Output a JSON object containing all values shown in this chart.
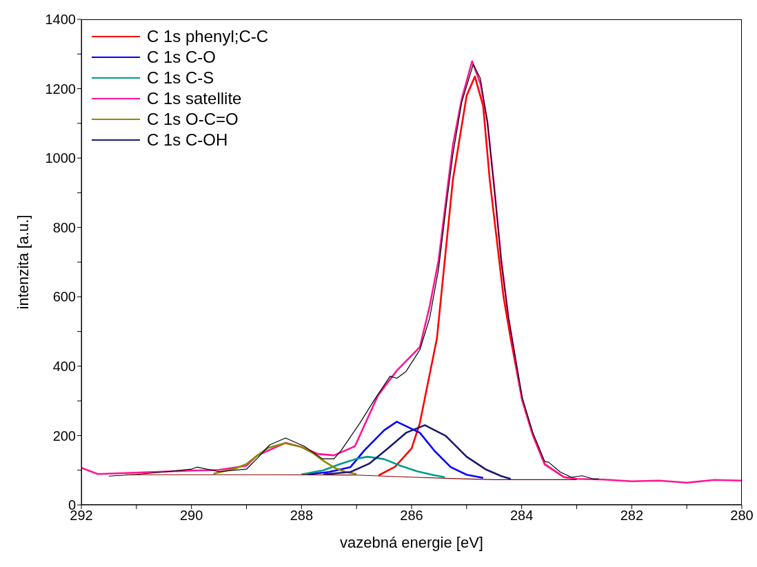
{
  "chart_data": {
    "type": "line",
    "xlabel": "vazebná energie [eV]",
    "ylabel": "intenzita [a.u.]",
    "xlim": [
      292,
      280
    ],
    "xticks": [
      292,
      {
        "value": 291,
        "label": null
      },
      290,
      {
        "value": 289,
        "label": null
      },
      288,
      {
        "value": 287,
        "label": null
      },
      286,
      {
        "value": 285,
        "label": null
      },
      284,
      {
        "value": 283,
        "label": null
      },
      282,
      {
        "value": 281,
        "label": null
      },
      280
    ],
    "ylim": [
      0,
      1400
    ],
    "yticks": [
      0,
      {
        "value": 100,
        "label": null
      },
      200,
      {
        "value": 300,
        "label": null
      },
      400,
      {
        "value": 500,
        "label": null
      },
      600,
      {
        "value": 700,
        "label": null
      },
      800,
      {
        "value": 900,
        "label": null
      },
      1000,
      {
        "value": 1100,
        "label": null
      },
      1200,
      {
        "value": 1300,
        "label": null
      },
      1400
    ],
    "grid": false,
    "legend": "top left",
    "marker": "none",
    "line_style": "solid",
    "series": [
      {
        "color": "#000000",
        "x": [
          291.5,
          291,
          290.5,
          290,
          289.9,
          289.5,
          289,
          288.8,
          288.58,
          288.29,
          287.95,
          287.62,
          287.41,
          287.28,
          286.94,
          286.68,
          286.39,
          286.27,
          286.1,
          285.85,
          285.67,
          285.51,
          285.38,
          285.25,
          285.09,
          284.88,
          284.75,
          284.62,
          284.49,
          284.37,
          284.24,
          283.99,
          283.8,
          283.58,
          283.51,
          283.3,
          283.1,
          282.9,
          282.7,
          282.6
        ],
        "values": [
          83,
          88,
          95,
          103,
          109,
          96,
          103,
          135,
          173,
          193,
          169,
          133,
          133,
          157,
          236,
          302,
          371,
          365,
          385,
          447,
          540,
          680,
          850,
          1010,
          1160,
          1270,
          1230,
          1100,
          900,
          700,
          540,
          310,
          210,
          125,
          123,
          95,
          80,
          84,
          75,
          75
        ]
      },
      {
        "name": "C 1s phenyl;C-C",
        "color": "#ff0000",
        "x": [
          286.6,
          286.3,
          286,
          285.85,
          285.54,
          285.25,
          285,
          284.85,
          284.7,
          284.58,
          284.33,
          284.2,
          283.99,
          283.8,
          283.58,
          283.23,
          283
        ],
        "values": [
          85,
          110,
          163,
          236,
          480,
          937,
          1180,
          1235,
          1150,
          937,
          600,
          480,
          302,
          203,
          117,
          80,
          75
        ]
      },
      {
        "name": "C 1s C-O",
        "color": "#0000ff",
        "x": [
          287.9,
          287.5,
          287.11,
          286.86,
          286.5,
          286.27,
          285.85,
          285.59,
          285.29,
          285,
          284.7
        ],
        "values": [
          88,
          95,
          109,
          157,
          215,
          240,
          208,
          157,
          109,
          87,
          78
        ]
      },
      {
        "name": "C 1s C-S",
        "color": "#009a8a",
        "x": [
          288,
          287.6,
          287.3,
          287,
          286.8,
          286.5,
          286.2,
          285.9,
          285.6,
          285.4
        ],
        "values": [
          88,
          100,
          118,
          133,
          139,
          132,
          113,
          97,
          86,
          80
        ]
      },
      {
        "name": "C 1s satellite",
        "color": "#ff1493",
        "x": [
          292,
          291.7,
          290,
          289.5,
          289,
          288.8,
          288.29,
          288,
          287.7,
          287.41,
          287.03,
          286.61,
          286.27,
          285.85,
          285.67,
          285.51,
          285.38,
          285.25,
          285.09,
          284.9,
          284.75,
          284.62,
          284.49,
          284.37,
          284.24,
          283.99,
          283.8,
          283.58,
          283.23,
          283,
          282.5,
          282,
          281.5,
          281,
          280.5,
          280
        ],
        "values": [
          107,
          89,
          99,
          101,
          113,
          143,
          179,
          167,
          147,
          143,
          169,
          316,
          387,
          455,
          574,
          705,
          872,
          1037,
          1170,
          1279,
          1215,
          1102,
          903,
          705,
          540,
          302,
          203,
          117,
          80,
          75,
          73,
          68,
          70,
          64,
          72,
          70
        ]
      },
      {
        "name": "C 1s O-C=O",
        "color": "#8b8b00",
        "x": [
          289.6,
          289.2,
          289,
          288.8,
          288.6,
          288.3,
          288,
          287.8,
          287.6,
          287.4,
          287.2,
          287
        ],
        "values": [
          90,
          105,
          118,
          143,
          165,
          178,
          167,
          150,
          127,
          107,
          95,
          89
        ]
      },
      {
        "name": "C 1s C-OH",
        "color": "#191970",
        "x": [
          287.6,
          287.11,
          286.77,
          286.43,
          286.1,
          285.76,
          285.38,
          285,
          284.66,
          284.37,
          284.2
        ],
        "values": [
          88,
          95,
          119,
          163,
          208,
          230,
          199,
          139,
          103,
          83,
          75
        ]
      },
      {
        "color": "#800000",
        "x": [
          291.2,
          288.5,
          287,
          286,
          285.2,
          284.5,
          283
        ],
        "values": [
          87,
          87,
          86,
          80,
          76,
          73,
          73
        ]
      }
    ]
  }
}
